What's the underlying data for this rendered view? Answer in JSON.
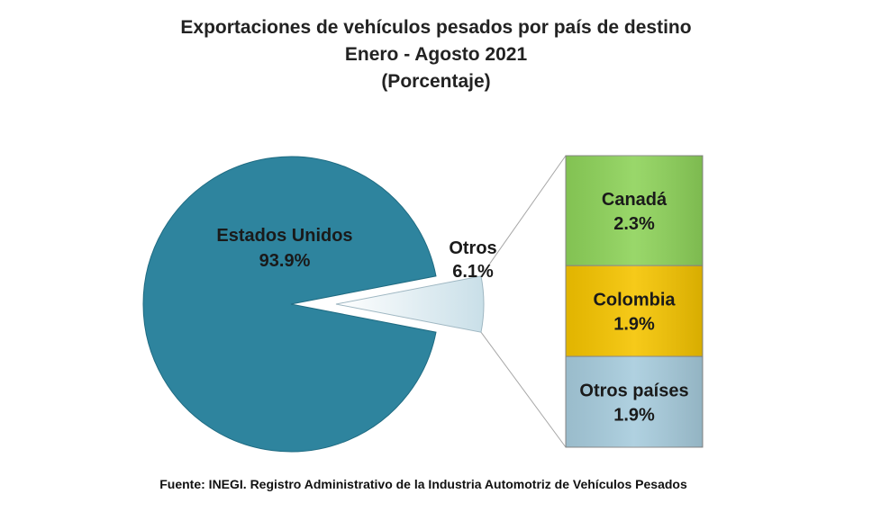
{
  "chart_data": {
    "type": "bar-of-pie",
    "title": "Exportaciones de vehículos pesados por país de destino",
    "subtitle": "Enero - Agosto 2021",
    "unit_label": "(Porcentaje)",
    "pie": {
      "slices": [
        {
          "name": "Estados Unidos",
          "value": 93.9,
          "label": "93.9%",
          "color": "#2E849E"
        },
        {
          "name": "Otros",
          "value": 6.1,
          "label": "6.1%",
          "color": "#D6E7EE"
        }
      ]
    },
    "bar": {
      "of": "Otros",
      "segments": [
        {
          "name": "Canadá",
          "value": 2.3,
          "label": "2.3%",
          "color": "#8ED35A"
        },
        {
          "name": "Colombia",
          "value": 1.9,
          "label": "1.9%",
          "color": "#F5C400"
        },
        {
          "name": "Otros países",
          "value": 1.9,
          "label": "1.9%",
          "color": "#A7CCDD"
        }
      ]
    },
    "source": "Fuente: INEGI. Registro Administrativo de la Industria Automotriz de Vehículos Pesados"
  }
}
